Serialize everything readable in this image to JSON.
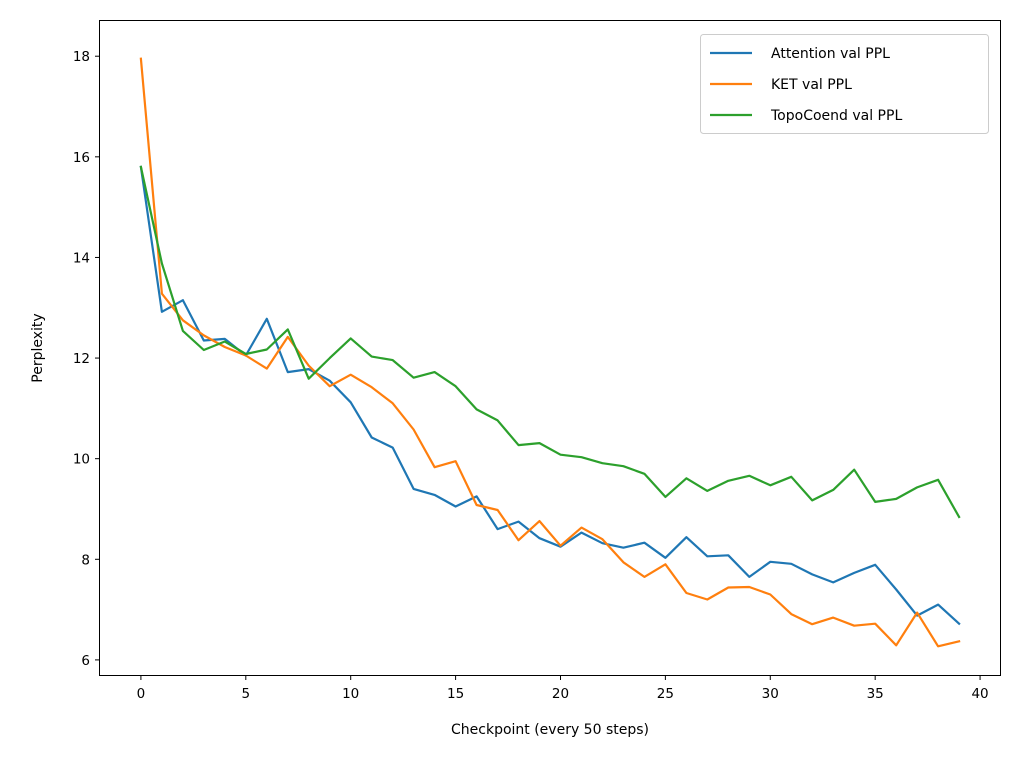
{
  "chart_data": {
    "type": "line",
    "title": "",
    "xlabel": "Checkpoint (every 50 steps)",
    "ylabel": "Perplexity",
    "xlim": [
      -1.95,
      40.95
    ],
    "ylim": [
      5.7,
      18.7
    ],
    "xticks": [
      0,
      5,
      10,
      15,
      20,
      25,
      30,
      35,
      40
    ],
    "yticks": [
      6,
      8,
      10,
      12,
      14,
      16,
      18
    ],
    "grid": false,
    "legend_position": "top-right",
    "x": [
      0,
      1,
      2,
      3,
      4,
      5,
      6,
      7,
      8,
      9,
      10,
      11,
      12,
      13,
      14,
      15,
      16,
      17,
      18,
      19,
      20,
      21,
      22,
      23,
      24,
      25,
      26,
      27,
      28,
      29,
      30,
      31,
      32,
      33,
      34,
      35,
      36,
      37,
      38,
      39
    ],
    "series": [
      {
        "name": "Attention val PPL",
        "color": "#1f77b4",
        "values": [
          15.8,
          12.92,
          13.15,
          12.35,
          12.38,
          12.05,
          12.78,
          11.72,
          11.78,
          11.55,
          11.12,
          10.42,
          10.22,
          9.4,
          9.28,
          9.05,
          9.25,
          8.6,
          8.75,
          8.42,
          8.25,
          8.53,
          8.32,
          8.23,
          8.33,
          8.03,
          8.44,
          8.06,
          8.08,
          7.65,
          7.95,
          7.91,
          7.7,
          7.54,
          7.73,
          7.89,
          7.4,
          6.88,
          7.1,
          6.72
        ]
      },
      {
        "name": "KET val PPL",
        "color": "#ff7f0e",
        "values": [
          17.95,
          13.28,
          12.75,
          12.45,
          12.22,
          12.05,
          11.79,
          12.42,
          11.85,
          11.44,
          11.67,
          11.42,
          11.1,
          10.58,
          9.83,
          9.95,
          9.08,
          8.98,
          8.38,
          8.76,
          8.27,
          8.63,
          8.4,
          7.94,
          7.65,
          7.9,
          7.33,
          7.2,
          7.44,
          7.45,
          7.3,
          6.91,
          6.71,
          6.84,
          6.68,
          6.72,
          6.29,
          6.94,
          6.27,
          6.37
        ]
      },
      {
        "name": "TopoCoend val PPL",
        "color": "#2ca02c",
        "values": [
          15.8,
          13.88,
          12.54,
          12.16,
          12.33,
          12.08,
          12.17,
          12.57,
          11.59,
          12.0,
          12.39,
          12.03,
          11.96,
          11.61,
          11.72,
          11.44,
          10.98,
          10.76,
          10.27,
          10.31,
          10.08,
          10.03,
          9.91,
          9.85,
          9.7,
          9.24,
          9.61,
          9.36,
          9.56,
          9.66,
          9.47,
          9.64,
          9.17,
          9.38,
          9.78,
          9.14,
          9.2,
          9.43,
          9.58,
          8.84
        ]
      }
    ]
  }
}
